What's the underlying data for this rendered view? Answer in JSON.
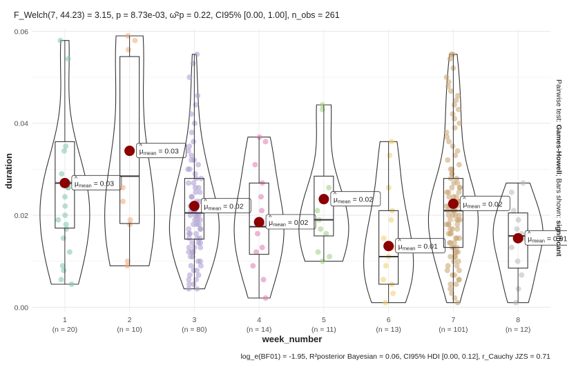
{
  "chart_data": {
    "type": "violin",
    "title": "F_Welch(7, 44.23) = 3.15, p = 8.73e-03, ω̂²p = 0.22, CI95% [0.00, 1.00], n_obs = 261",
    "xlabel": "week_number",
    "ylabel": "duration",
    "right_caption_prefix": "Pairwise test: ",
    "right_caption_test": "Games-Howell",
    "right_caption_mid": "; Bars shown: ",
    "right_caption_bars": "significant",
    "bottom_caption": "log_e(BF01) = -1.95, R²posterior Bayesian = 0.06, CI95% HDI [0.00, 0.12], r_Cauchy JZS = 0.71",
    "ylim": [
      -0.001,
      0.0605
    ],
    "yticks": [
      "0.00",
      "0.02",
      "0.04",
      "0.06"
    ],
    "ytick_values": [
      0.0,
      0.02,
      0.04,
      0.06
    ],
    "categories": [
      {
        "label": "1",
        "n": "(n = 20)",
        "mean": 0.027,
        "mean_label": "= 0.03",
        "q1": 0.0172,
        "median": 0.027,
        "q3": 0.036,
        "wmin": 0.005,
        "wmax": 0.058,
        "color": "#7fc7a8",
        "points": [
          0.058,
          0.054,
          0.035,
          0.034,
          0.029,
          0.027,
          0.026,
          0.024,
          0.022,
          0.02,
          0.019,
          0.018,
          0.017,
          0.015,
          0.012,
          0.009,
          0.008,
          0.006,
          0.005,
          0.026
        ]
      },
      {
        "label": "2",
        "n": "(n = 10)",
        "mean": 0.034,
        "mean_label": "= 0.03",
        "q1": 0.0182,
        "median": 0.0285,
        "q3": 0.0545,
        "wmin": 0.009,
        "wmax": 0.059,
        "color": "#f0a77a",
        "points": [
          0.059,
          0.058,
          0.056,
          0.034,
          0.026,
          0.023,
          0.019,
          0.018,
          0.01,
          0.009
        ]
      },
      {
        "label": "3",
        "n": "(n = 80)",
        "mean": 0.022,
        "mean_label": "= 0.02",
        "q1": 0.0148,
        "median": 0.0205,
        "q3": 0.028,
        "wmin": 0.004,
        "wmax": 0.055,
        "color": "#a99bd0",
        "points": [
          0.055,
          0.053,
          0.05,
          0.046,
          0.044,
          0.042,
          0.04,
          0.038,
          0.036,
          0.035,
          0.034,
          0.033,
          0.032,
          0.032,
          0.031,
          0.03,
          0.03,
          0.029,
          0.028,
          0.028,
          0.027,
          0.027,
          0.026,
          0.026,
          0.025,
          0.025,
          0.024,
          0.024,
          0.023,
          0.023,
          0.022,
          0.022,
          0.022,
          0.021,
          0.021,
          0.021,
          0.02,
          0.02,
          0.02,
          0.019,
          0.019,
          0.019,
          0.018,
          0.018,
          0.018,
          0.017,
          0.017,
          0.017,
          0.016,
          0.016,
          0.016,
          0.015,
          0.015,
          0.015,
          0.014,
          0.014,
          0.014,
          0.013,
          0.013,
          0.013,
          0.012,
          0.012,
          0.012,
          0.011,
          0.011,
          0.01,
          0.01,
          0.009,
          0.009,
          0.008,
          0.008,
          0.007,
          0.007,
          0.006,
          0.006,
          0.005,
          0.005,
          0.004,
          0.004,
          0.02
        ]
      },
      {
        "label": "4",
        "n": "(n = 14)",
        "mean": 0.0185,
        "mean_label": "= 0.02",
        "q1": 0.0115,
        "median": 0.0175,
        "q3": 0.027,
        "wmin": 0.002,
        "wmax": 0.037,
        "color": "#e07ab0",
        "points": [
          0.037,
          0.036,
          0.031,
          0.027,
          0.024,
          0.021,
          0.019,
          0.018,
          0.016,
          0.013,
          0.012,
          0.009,
          0.006,
          0.002
        ]
      },
      {
        "label": "5",
        "n": "(n = 11)",
        "mean": 0.0235,
        "mean_label": "= 0.02",
        "q1": 0.0155,
        "median": 0.019,
        "q3": 0.0285,
        "wmin": 0.01,
        "wmax": 0.044,
        "color": "#9ccf7d",
        "points": [
          0.044,
          0.043,
          0.026,
          0.024,
          0.021,
          0.019,
          0.017,
          0.016,
          0.012,
          0.011,
          0.01
        ]
      },
      {
        "label": "6",
        "n": "(n = 13)",
        "mean": 0.0133,
        "mean_label": "= 0.01",
        "q1": 0.005,
        "median": 0.011,
        "q3": 0.021,
        "wmin": 0.001,
        "wmax": 0.036,
        "color": "#f0cd6b",
        "points": [
          0.036,
          0.033,
          0.026,
          0.021,
          0.019,
          0.015,
          0.013,
          0.011,
          0.009,
          0.006,
          0.005,
          0.003,
          0.001
        ]
      },
      {
        "label": "7",
        "n": "(n = 101)",
        "mean": 0.0225,
        "mean_label": "= 0.02",
        "q1": 0.013,
        "median": 0.021,
        "q3": 0.028,
        "wmin": 0.001,
        "wmax": 0.055,
        "color": "#c9a36f",
        "points": [
          0.055,
          0.055,
          0.054,
          0.052,
          0.05,
          0.049,
          0.048,
          0.047,
          0.046,
          0.045,
          0.044,
          0.043,
          0.042,
          0.041,
          0.04,
          0.039,
          0.038,
          0.037,
          0.036,
          0.035,
          0.034,
          0.033,
          0.032,
          0.031,
          0.03,
          0.03,
          0.029,
          0.029,
          0.028,
          0.028,
          0.027,
          0.027,
          0.026,
          0.026,
          0.025,
          0.025,
          0.025,
          0.024,
          0.024,
          0.024,
          0.023,
          0.023,
          0.023,
          0.022,
          0.022,
          0.022,
          0.022,
          0.021,
          0.021,
          0.021,
          0.021,
          0.02,
          0.02,
          0.02,
          0.02,
          0.019,
          0.019,
          0.019,
          0.019,
          0.018,
          0.018,
          0.018,
          0.018,
          0.017,
          0.017,
          0.017,
          0.016,
          0.016,
          0.016,
          0.015,
          0.015,
          0.015,
          0.014,
          0.014,
          0.014,
          0.013,
          0.013,
          0.013,
          0.012,
          0.012,
          0.012,
          0.011,
          0.011,
          0.011,
          0.01,
          0.01,
          0.009,
          0.009,
          0.008,
          0.008,
          0.007,
          0.007,
          0.006,
          0.006,
          0.005,
          0.005,
          0.004,
          0.003,
          0.002,
          0.001,
          0.026
        ]
      },
      {
        "label": "8",
        "n": "(n = 12)",
        "mean": 0.015,
        "mean_label": "= 0.01",
        "q1": 0.0085,
        "median": 0.0155,
        "q3": 0.0205,
        "wmin": 0.001,
        "wmax": 0.027,
        "color": "#b8b8b8",
        "points": [
          0.027,
          0.025,
          0.021,
          0.019,
          0.017,
          0.016,
          0.015,
          0.013,
          0.01,
          0.007,
          0.004,
          0.001
        ]
      }
    ]
  }
}
